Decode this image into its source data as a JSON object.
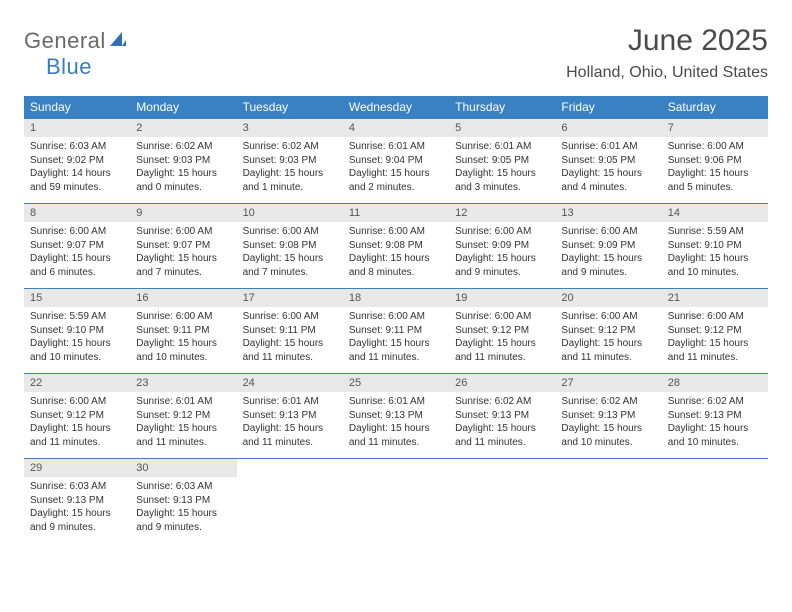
{
  "logo": {
    "text1": "General",
    "text2": "Blue"
  },
  "title": "June 2025",
  "location": "Holland, Ohio, United States",
  "colors": {
    "header_bg": "#3a81c4",
    "header_text": "#ffffff",
    "daynum_bg": "#e8e8e8",
    "daynum_text": "#555555",
    "body_text": "#333333",
    "rule": "#3a81c4"
  },
  "day_names": [
    "Sunday",
    "Monday",
    "Tuesday",
    "Wednesday",
    "Thursday",
    "Friday",
    "Saturday"
  ],
  "days": [
    {
      "num": 1,
      "sunrise": "6:03 AM",
      "sunset": "9:02 PM",
      "daylight": "14 hours and 59 minutes."
    },
    {
      "num": 2,
      "sunrise": "6:02 AM",
      "sunset": "9:03 PM",
      "daylight": "15 hours and 0 minutes."
    },
    {
      "num": 3,
      "sunrise": "6:02 AM",
      "sunset": "9:03 PM",
      "daylight": "15 hours and 1 minute."
    },
    {
      "num": 4,
      "sunrise": "6:01 AM",
      "sunset": "9:04 PM",
      "daylight": "15 hours and 2 minutes."
    },
    {
      "num": 5,
      "sunrise": "6:01 AM",
      "sunset": "9:05 PM",
      "daylight": "15 hours and 3 minutes."
    },
    {
      "num": 6,
      "sunrise": "6:01 AM",
      "sunset": "9:05 PM",
      "daylight": "15 hours and 4 minutes."
    },
    {
      "num": 7,
      "sunrise": "6:00 AM",
      "sunset": "9:06 PM",
      "daylight": "15 hours and 5 minutes."
    },
    {
      "num": 8,
      "sunrise": "6:00 AM",
      "sunset": "9:07 PM",
      "daylight": "15 hours and 6 minutes."
    },
    {
      "num": 9,
      "sunrise": "6:00 AM",
      "sunset": "9:07 PM",
      "daylight": "15 hours and 7 minutes."
    },
    {
      "num": 10,
      "sunrise": "6:00 AM",
      "sunset": "9:08 PM",
      "daylight": "15 hours and 7 minutes."
    },
    {
      "num": 11,
      "sunrise": "6:00 AM",
      "sunset": "9:08 PM",
      "daylight": "15 hours and 8 minutes."
    },
    {
      "num": 12,
      "sunrise": "6:00 AM",
      "sunset": "9:09 PM",
      "daylight": "15 hours and 9 minutes."
    },
    {
      "num": 13,
      "sunrise": "6:00 AM",
      "sunset": "9:09 PM",
      "daylight": "15 hours and 9 minutes."
    },
    {
      "num": 14,
      "sunrise": "5:59 AM",
      "sunset": "9:10 PM",
      "daylight": "15 hours and 10 minutes."
    },
    {
      "num": 15,
      "sunrise": "5:59 AM",
      "sunset": "9:10 PM",
      "daylight": "15 hours and 10 minutes."
    },
    {
      "num": 16,
      "sunrise": "6:00 AM",
      "sunset": "9:11 PM",
      "daylight": "15 hours and 10 minutes."
    },
    {
      "num": 17,
      "sunrise": "6:00 AM",
      "sunset": "9:11 PM",
      "daylight": "15 hours and 11 minutes."
    },
    {
      "num": 18,
      "sunrise": "6:00 AM",
      "sunset": "9:11 PM",
      "daylight": "15 hours and 11 minutes."
    },
    {
      "num": 19,
      "sunrise": "6:00 AM",
      "sunset": "9:12 PM",
      "daylight": "15 hours and 11 minutes."
    },
    {
      "num": 20,
      "sunrise": "6:00 AM",
      "sunset": "9:12 PM",
      "daylight": "15 hours and 11 minutes."
    },
    {
      "num": 21,
      "sunrise": "6:00 AM",
      "sunset": "9:12 PM",
      "daylight": "15 hours and 11 minutes."
    },
    {
      "num": 22,
      "sunrise": "6:00 AM",
      "sunset": "9:12 PM",
      "daylight": "15 hours and 11 minutes."
    },
    {
      "num": 23,
      "sunrise": "6:01 AM",
      "sunset": "9:12 PM",
      "daylight": "15 hours and 11 minutes."
    },
    {
      "num": 24,
      "sunrise": "6:01 AM",
      "sunset": "9:13 PM",
      "daylight": "15 hours and 11 minutes."
    },
    {
      "num": 25,
      "sunrise": "6:01 AM",
      "sunset": "9:13 PM",
      "daylight": "15 hours and 11 minutes."
    },
    {
      "num": 26,
      "sunrise": "6:02 AM",
      "sunset": "9:13 PM",
      "daylight": "15 hours and 11 minutes."
    },
    {
      "num": 27,
      "sunrise": "6:02 AM",
      "sunset": "9:13 PM",
      "daylight": "15 hours and 10 minutes."
    },
    {
      "num": 28,
      "sunrise": "6:02 AM",
      "sunset": "9:13 PM",
      "daylight": "15 hours and 10 minutes."
    },
    {
      "num": 29,
      "sunrise": "6:03 AM",
      "sunset": "9:13 PM",
      "daylight": "15 hours and 9 minutes."
    },
    {
      "num": 30,
      "sunrise": "6:03 AM",
      "sunset": "9:13 PM",
      "daylight": "15 hours and 9 minutes."
    }
  ],
  "labels": {
    "sunrise": "Sunrise:",
    "sunset": "Sunset:",
    "daylight": "Daylight:"
  }
}
